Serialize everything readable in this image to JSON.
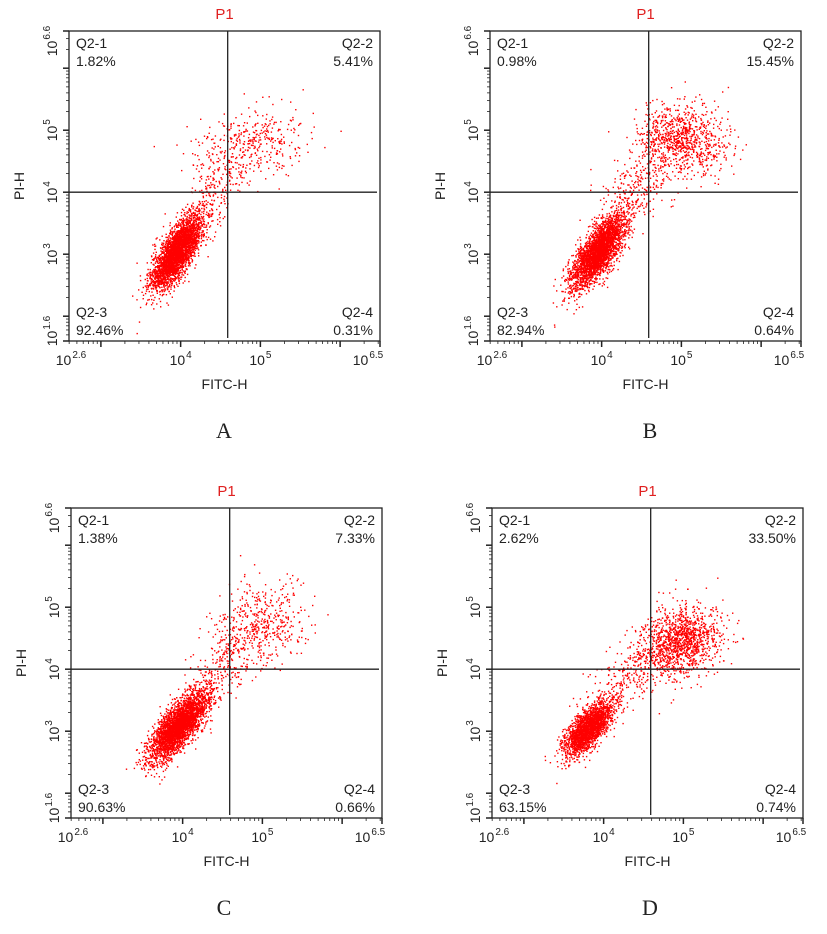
{
  "chart_data": [
    {
      "type": "scatter",
      "panel_label": "A",
      "title": "P1",
      "xlabel": "FITC-H",
      "ylabel": "PI-H",
      "xscale": "log10",
      "yscale": "log10",
      "xlim_log10": [
        2.6,
        6.5
      ],
      "ylim_log10": [
        1.6,
        6.6
      ],
      "x_ticks": [
        {
          "base": "10",
          "exp": "2.6",
          "log": 2.6
        },
        {
          "base": "10",
          "exp": "4",
          "log": 4
        },
        {
          "base": "10",
          "exp": "5",
          "log": 5
        },
        {
          "base": "10",
          "exp": "6.5",
          "log": 6.5
        }
      ],
      "y_ticks": [
        {
          "base": "10",
          "exp": "1.6",
          "log": 1.6
        },
        {
          "base": "10",
          "exp": "3",
          "log": 3
        },
        {
          "base": "10",
          "exp": "4",
          "log": 4
        },
        {
          "base": "10",
          "exp": "5",
          "log": 5
        },
        {
          "base": "10",
          "exp": "6.6",
          "log": 6.6
        }
      ],
      "gate_log10": {
        "x": 4.59,
        "y": 4.0
      },
      "quadrants": [
        {
          "name": "Q2-1",
          "value": "1.82%"
        },
        {
          "name": "Q2-2",
          "value": "5.41%"
        },
        {
          "name": "Q2-3",
          "value": "92.46%"
        },
        {
          "name": "Q2-4",
          "value": "0.31%"
        }
      ],
      "clusters_log10": [
        {
          "cx": 3.95,
          "cy": 3.05,
          "sx": 0.16,
          "sy": 0.3,
          "rho": 0.75,
          "n": 3200
        },
        {
          "cx": 4.85,
          "cy": 4.75,
          "sx": 0.35,
          "sy": 0.3,
          "rho": 0.3,
          "n": 420
        },
        {
          "cx": 4.4,
          "cy": 4.0,
          "sx": 0.2,
          "sy": 0.3,
          "rho": 0.5,
          "n": 160
        }
      ],
      "point_color": "#ff0000"
    },
    {
      "type": "scatter",
      "panel_label": "B",
      "title": "P1",
      "xlabel": "FITC-H",
      "ylabel": "PI-H",
      "xscale": "log10",
      "yscale": "log10",
      "xlim_log10": [
        2.6,
        6.5
      ],
      "ylim_log10": [
        1.6,
        6.6
      ],
      "x_ticks": [
        {
          "base": "10",
          "exp": "2.6",
          "log": 2.6
        },
        {
          "base": "10",
          "exp": "4",
          "log": 4
        },
        {
          "base": "10",
          "exp": "5",
          "log": 5
        },
        {
          "base": "10",
          "exp": "6.5",
          "log": 6.5
        }
      ],
      "y_ticks": [
        {
          "base": "10",
          "exp": "1.6",
          "log": 1.6
        },
        {
          "base": "10",
          "exp": "3",
          "log": 3
        },
        {
          "base": "10",
          "exp": "4",
          "log": 4
        },
        {
          "base": "10",
          "exp": "5",
          "log": 5
        },
        {
          "base": "10",
          "exp": "6.6",
          "log": 6.6
        }
      ],
      "gate_log10": {
        "x": 4.59,
        "y": 4.0
      },
      "quadrants": [
        {
          "name": "Q2-1",
          "value": "0.98%"
        },
        {
          "name": "Q2-2",
          "value": "15.45%"
        },
        {
          "name": "Q2-3",
          "value": "82.94%"
        },
        {
          "name": "Q2-4",
          "value": "0.64%"
        }
      ],
      "clusters_log10": [
        {
          "cx": 3.95,
          "cy": 3.05,
          "sx": 0.17,
          "sy": 0.3,
          "rho": 0.75,
          "n": 3000
        },
        {
          "cx": 5.0,
          "cy": 4.85,
          "sx": 0.28,
          "sy": 0.28,
          "rho": -0.2,
          "n": 900
        },
        {
          "cx": 4.45,
          "cy": 4.1,
          "sx": 0.25,
          "sy": 0.35,
          "rho": 0.5,
          "n": 260
        }
      ],
      "point_color": "#ff0000"
    },
    {
      "type": "scatter",
      "panel_label": "C",
      "title": "P1",
      "xlabel": "FITC-H",
      "ylabel": "PI-H",
      "xscale": "log10",
      "yscale": "log10",
      "xlim_log10": [
        2.6,
        6.5
      ],
      "ylim_log10": [
        1.6,
        6.6
      ],
      "x_ticks": [
        {
          "base": "10",
          "exp": "2.6",
          "log": 2.6
        },
        {
          "base": "10",
          "exp": "4",
          "log": 4
        },
        {
          "base": "10",
          "exp": "5",
          "log": 5
        },
        {
          "base": "10",
          "exp": "6.5",
          "log": 6.5
        }
      ],
      "y_ticks": [
        {
          "base": "10",
          "exp": "1.6",
          "log": 1.6
        },
        {
          "base": "10",
          "exp": "3",
          "log": 3
        },
        {
          "base": "10",
          "exp": "4",
          "log": 4
        },
        {
          "base": "10",
          "exp": "5",
          "log": 5
        },
        {
          "base": "10",
          "exp": "6.6",
          "log": 6.6
        }
      ],
      "gate_log10": {
        "x": 4.59,
        "y": 4.0
      },
      "quadrants": [
        {
          "name": "Q2-1",
          "value": "1.38%"
        },
        {
          "name": "Q2-2",
          "value": "7.33%"
        },
        {
          "name": "Q2-3",
          "value": "90.63%"
        },
        {
          "name": "Q2-4",
          "value": "0.66%"
        }
      ],
      "clusters_log10": [
        {
          "cx": 3.95,
          "cy": 3.1,
          "sx": 0.18,
          "sy": 0.28,
          "rho": 0.75,
          "n": 3200
        },
        {
          "cx": 4.95,
          "cy": 4.7,
          "sx": 0.3,
          "sy": 0.35,
          "rho": 0.2,
          "n": 520
        },
        {
          "cx": 4.45,
          "cy": 4.0,
          "sx": 0.22,
          "sy": 0.3,
          "rho": 0.5,
          "n": 200
        }
      ],
      "point_color": "#ff0000"
    },
    {
      "type": "scatter",
      "panel_label": "D",
      "title": "P1",
      "xlabel": "FITC-H",
      "ylabel": "PI-H",
      "xscale": "log10",
      "yscale": "log10",
      "xlim_log10": [
        2.6,
        6.5
      ],
      "ylim_log10": [
        1.6,
        6.6
      ],
      "x_ticks": [
        {
          "base": "10",
          "exp": "2.6",
          "log": 2.6
        },
        {
          "base": "10",
          "exp": "4",
          "log": 4
        },
        {
          "base": "10",
          "exp": "5",
          "log": 5
        },
        {
          "base": "10",
          "exp": "6.5",
          "log": 6.5
        }
      ],
      "y_ticks": [
        {
          "base": "10",
          "exp": "1.6",
          "log": 1.6
        },
        {
          "base": "10",
          "exp": "3",
          "log": 3
        },
        {
          "base": "10",
          "exp": "4",
          "log": 4
        },
        {
          "base": "10",
          "exp": "5",
          "log": 5
        },
        {
          "base": "10",
          "exp": "6.6",
          "log": 6.6
        }
      ],
      "gate_log10": {
        "x": 4.59,
        "y": 4.0
      },
      "quadrants": [
        {
          "name": "Q2-1",
          "value": "2.62%"
        },
        {
          "name": "Q2-2",
          "value": "33.50%"
        },
        {
          "name": "Q2-3",
          "value": "63.15%"
        },
        {
          "name": "Q2-4",
          "value": "0.74%"
        }
      ],
      "clusters_log10": [
        {
          "cx": 3.8,
          "cy": 3.05,
          "sx": 0.15,
          "sy": 0.22,
          "rho": 0.7,
          "n": 2200
        },
        {
          "cx": 4.95,
          "cy": 4.45,
          "sx": 0.25,
          "sy": 0.28,
          "rho": 0.2,
          "n": 1300
        },
        {
          "cx": 4.3,
          "cy": 3.9,
          "sx": 0.28,
          "sy": 0.35,
          "rho": 0.55,
          "n": 220
        }
      ],
      "point_color": "#ff0000"
    }
  ],
  "colors": {
    "title": "#e02020",
    "points": "#ff0000",
    "axis": "#222222"
  }
}
